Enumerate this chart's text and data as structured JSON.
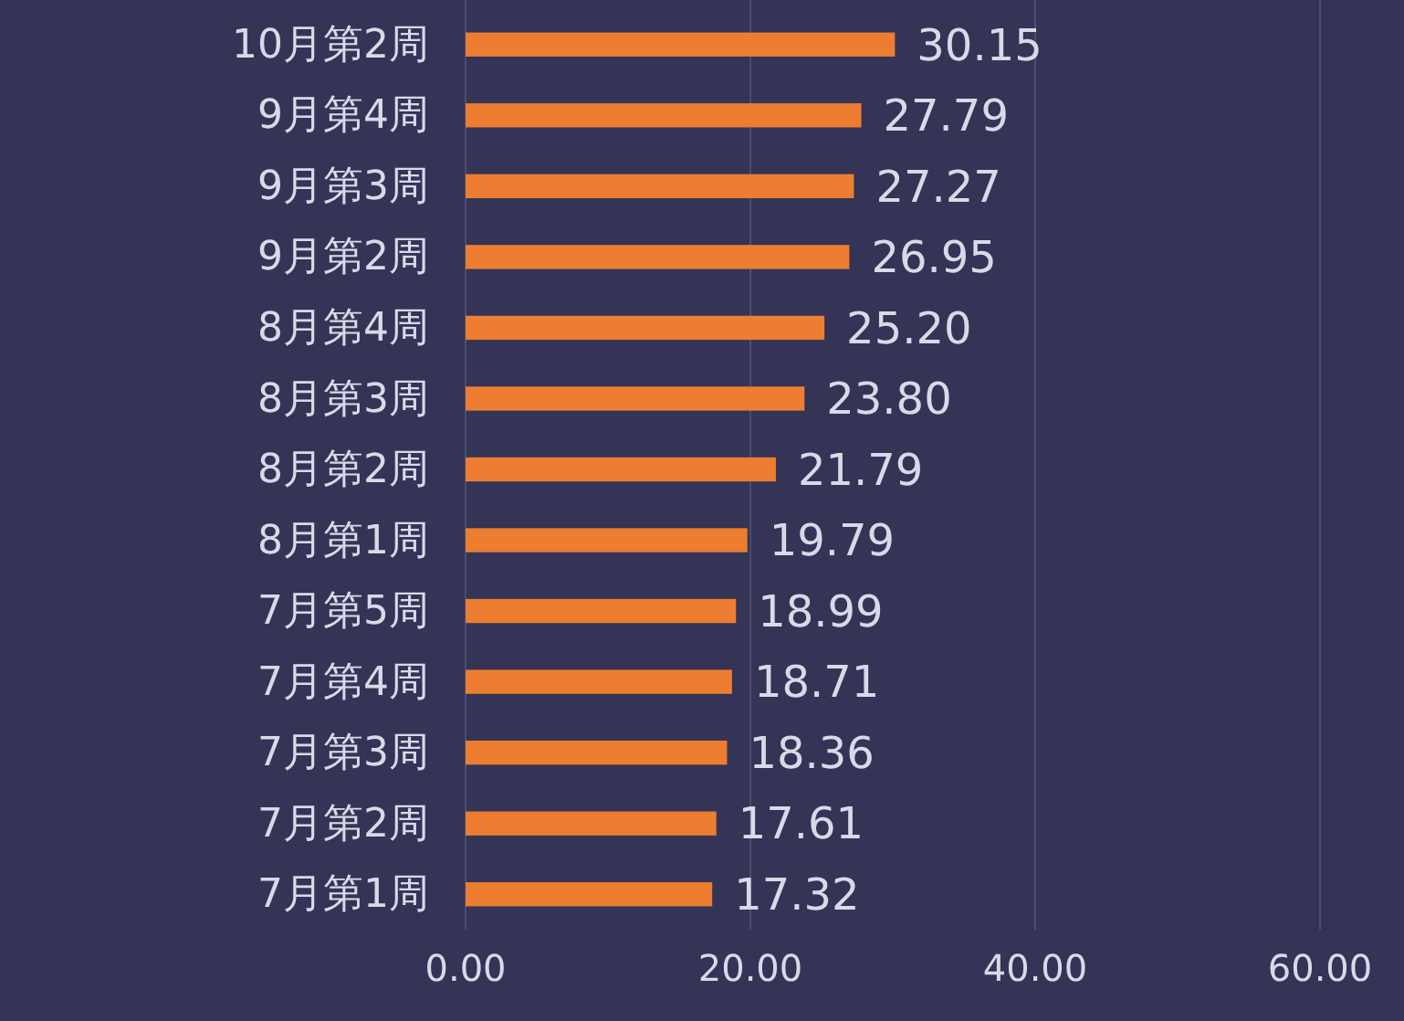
{
  "chart_data": {
    "type": "bar",
    "orientation": "horizontal",
    "categories": [
      "10月第2周",
      "9月第4周",
      "9月第3周",
      "9月第2周",
      "8月第4周",
      "8月第3周",
      "8月第2周",
      "8月第1周",
      "7月第5周",
      "7月第4周",
      "7月第3周",
      "7月第2周",
      "7月第1周"
    ],
    "values": [
      30.15,
      27.79,
      27.27,
      26.95,
      25.2,
      23.8,
      21.79,
      19.79,
      18.99,
      18.71,
      18.36,
      17.61,
      17.32
    ],
    "value_labels": [
      "30.15",
      "27.79",
      "27.27",
      "26.95",
      "25.20",
      "23.80",
      "21.79",
      "19.79",
      "18.99",
      "18.71",
      "18.36",
      "17.61",
      "17.32"
    ],
    "color": "#ed7d31",
    "xlim": [
      0,
      60
    ],
    "xticks": [
      {
        "value": 0,
        "label": "0.00"
      },
      {
        "value": 20,
        "label": "20.00"
      },
      {
        "value": 40,
        "label": "40.00"
      },
      {
        "value": 60,
        "label": "60.00"
      }
    ],
    "grid": "x"
  }
}
